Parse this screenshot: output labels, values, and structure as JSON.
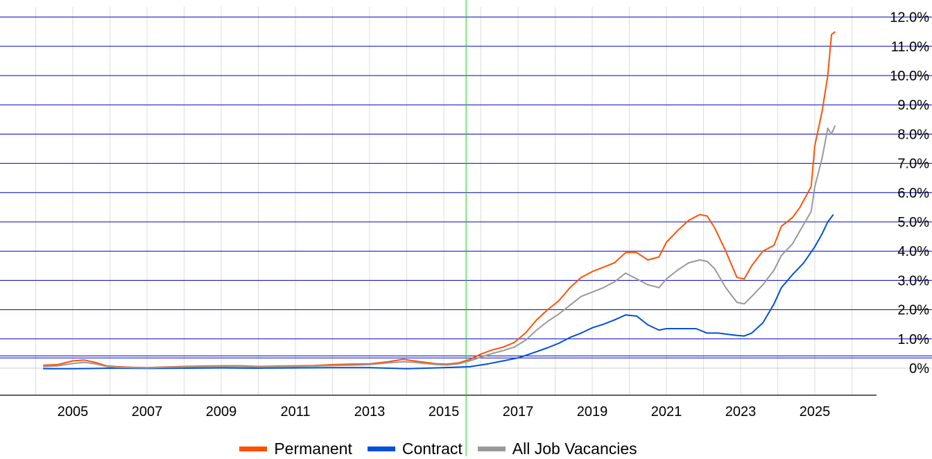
{
  "chart_data": {
    "type": "line",
    "x_tick_labels": [
      "2005",
      "2007",
      "2009",
      "2011",
      "2013",
      "2015",
      "2017",
      "2019",
      "2021",
      "2023",
      "2025"
    ],
    "y_tick_labels": [
      "0%",
      "1.0%",
      "2.0%",
      "3.0%",
      "4.0%",
      "5.0%",
      "6.0%",
      "7.0%",
      "8.0%",
      "9.0%",
      "10.0%",
      "11.0%",
      "12.0%"
    ],
    "ylim": [
      0,
      12
    ],
    "xlim": [
      2004.0,
      2026.5
    ],
    "grid": true,
    "legend_position": "bottom",
    "marker_line_x": 2015.6,
    "colors": {
      "Permanent": "#ff5000",
      "Contract": "#0050d8",
      "All Job Vacancies": "#999999",
      "horizontal_lines": "#0000c0",
      "vertical_grid": "#dddddd",
      "marker_line": "#00dd00"
    },
    "series": [
      {
        "name": "Permanent",
        "color": "#ff5000",
        "x": [
          2004.2,
          2004.6,
          2005.0,
          2005.3,
          2005.6,
          2005.9,
          2006.2,
          2006.6,
          2007.0,
          2007.5,
          2008.0,
          2008.5,
          2009.0,
          2009.5,
          2010.0,
          2010.5,
          2011.0,
          2011.5,
          2012.0,
          2012.5,
          2013.0,
          2013.5,
          2013.9,
          2014.2,
          2014.5,
          2014.8,
          2015.1,
          2015.4,
          2015.7,
          2016.0,
          2016.3,
          2016.6,
          2016.9,
          2017.2,
          2017.5,
          2017.8,
          2018.1,
          2018.4,
          2018.7,
          2019.0,
          2019.3,
          2019.6,
          2019.9,
          2020.2,
          2020.5,
          2020.8,
          2021.0,
          2021.3,
          2021.6,
          2021.9,
          2022.1,
          2022.3,
          2022.6,
          2022.9,
          2023.1,
          2023.3,
          2023.6,
          2023.9,
          2024.1,
          2024.4,
          2024.6,
          2024.9,
          2025.0,
          2025.2,
          2025.35,
          2025.45,
          2025.55
        ],
        "values": [
          0.1,
          0.12,
          0.25,
          0.28,
          0.2,
          0.08,
          0.05,
          0.03,
          0.02,
          0.04,
          0.06,
          0.07,
          0.08,
          0.08,
          0.06,
          0.07,
          0.08,
          0.09,
          0.12,
          0.14,
          0.15,
          0.22,
          0.3,
          0.25,
          0.2,
          0.15,
          0.14,
          0.18,
          0.3,
          0.48,
          0.62,
          0.72,
          0.88,
          1.2,
          1.65,
          2.0,
          2.3,
          2.75,
          3.1,
          3.3,
          3.45,
          3.6,
          3.95,
          3.95,
          3.7,
          3.8,
          4.3,
          4.7,
          5.05,
          5.25,
          5.2,
          4.8,
          4.0,
          3.1,
          3.05,
          3.5,
          4.0,
          4.2,
          4.85,
          5.15,
          5.5,
          6.2,
          7.6,
          8.8,
          10.0,
          11.4,
          11.5
        ]
      },
      {
        "name": "Contract",
        "color": "#0050d8",
        "x": [
          2004.2,
          2005.0,
          2006.0,
          2007.0,
          2008.0,
          2009.0,
          2010.0,
          2011.0,
          2012.0,
          2013.0,
          2014.0,
          2015.0,
          2015.7,
          2016.2,
          2016.6,
          2017.0,
          2017.4,
          2017.8,
          2018.1,
          2018.4,
          2018.7,
          2019.0,
          2019.3,
          2019.6,
          2019.9,
          2020.2,
          2020.5,
          2020.8,
          2021.0,
          2021.4,
          2021.8,
          2022.1,
          2022.4,
          2022.7,
          2022.9,
          2023.1,
          2023.3,
          2023.6,
          2023.9,
          2024.1,
          2024.4,
          2024.7,
          2025.0,
          2025.2,
          2025.35,
          2025.5
        ],
        "values": [
          -0.02,
          -0.02,
          0.0,
          -0.01,
          0.0,
          0.01,
          0.0,
          0.01,
          0.02,
          0.02,
          -0.02,
          0.02,
          0.05,
          0.15,
          0.25,
          0.35,
          0.52,
          0.7,
          0.85,
          1.05,
          1.2,
          1.38,
          1.5,
          1.65,
          1.82,
          1.78,
          1.48,
          1.3,
          1.35,
          1.35,
          1.35,
          1.2,
          1.2,
          1.15,
          1.12,
          1.1,
          1.2,
          1.55,
          2.2,
          2.75,
          3.2,
          3.6,
          4.15,
          4.6,
          5.0,
          5.25
        ]
      },
      {
        "name": "All Job Vacancies",
        "color": "#999999",
        "x": [
          2004.2,
          2004.6,
          2005.0,
          2005.3,
          2005.6,
          2005.9,
          2006.2,
          2006.6,
          2007.0,
          2007.5,
          2008.0,
          2008.5,
          2009.0,
          2009.5,
          2010.0,
          2010.5,
          2011.0,
          2011.5,
          2012.0,
          2012.5,
          2013.0,
          2013.5,
          2013.9,
          2014.2,
          2014.5,
          2014.8,
          2015.1,
          2015.4,
          2015.7,
          2016.0,
          2016.3,
          2016.6,
          2016.9,
          2017.2,
          2017.5,
          2017.8,
          2018.1,
          2018.4,
          2018.7,
          2019.0,
          2019.3,
          2019.6,
          2019.9,
          2020.2,
          2020.5,
          2020.8,
          2021.0,
          2021.3,
          2021.6,
          2021.9,
          2022.1,
          2022.3,
          2022.6,
          2022.9,
          2023.1,
          2023.3,
          2023.6,
          2023.9,
          2024.1,
          2024.4,
          2024.6,
          2024.9,
          2025.0,
          2025.2,
          2025.35,
          2025.45,
          2025.55
        ],
        "values": [
          0.05,
          0.08,
          0.16,
          0.2,
          0.15,
          0.06,
          0.03,
          0.02,
          0.01,
          0.03,
          0.04,
          0.05,
          0.06,
          0.06,
          0.04,
          0.05,
          0.06,
          0.07,
          0.09,
          0.1,
          0.12,
          0.18,
          0.22,
          0.2,
          0.16,
          0.12,
          0.11,
          0.15,
          0.25,
          0.38,
          0.5,
          0.6,
          0.72,
          0.95,
          1.3,
          1.6,
          1.85,
          2.15,
          2.45,
          2.6,
          2.75,
          2.95,
          3.25,
          3.05,
          2.85,
          2.75,
          3.05,
          3.35,
          3.6,
          3.7,
          3.65,
          3.4,
          2.75,
          2.25,
          2.2,
          2.45,
          2.85,
          3.35,
          3.85,
          4.25,
          4.7,
          5.35,
          6.2,
          7.2,
          8.2,
          8.0,
          8.3
        ]
      }
    ]
  }
}
